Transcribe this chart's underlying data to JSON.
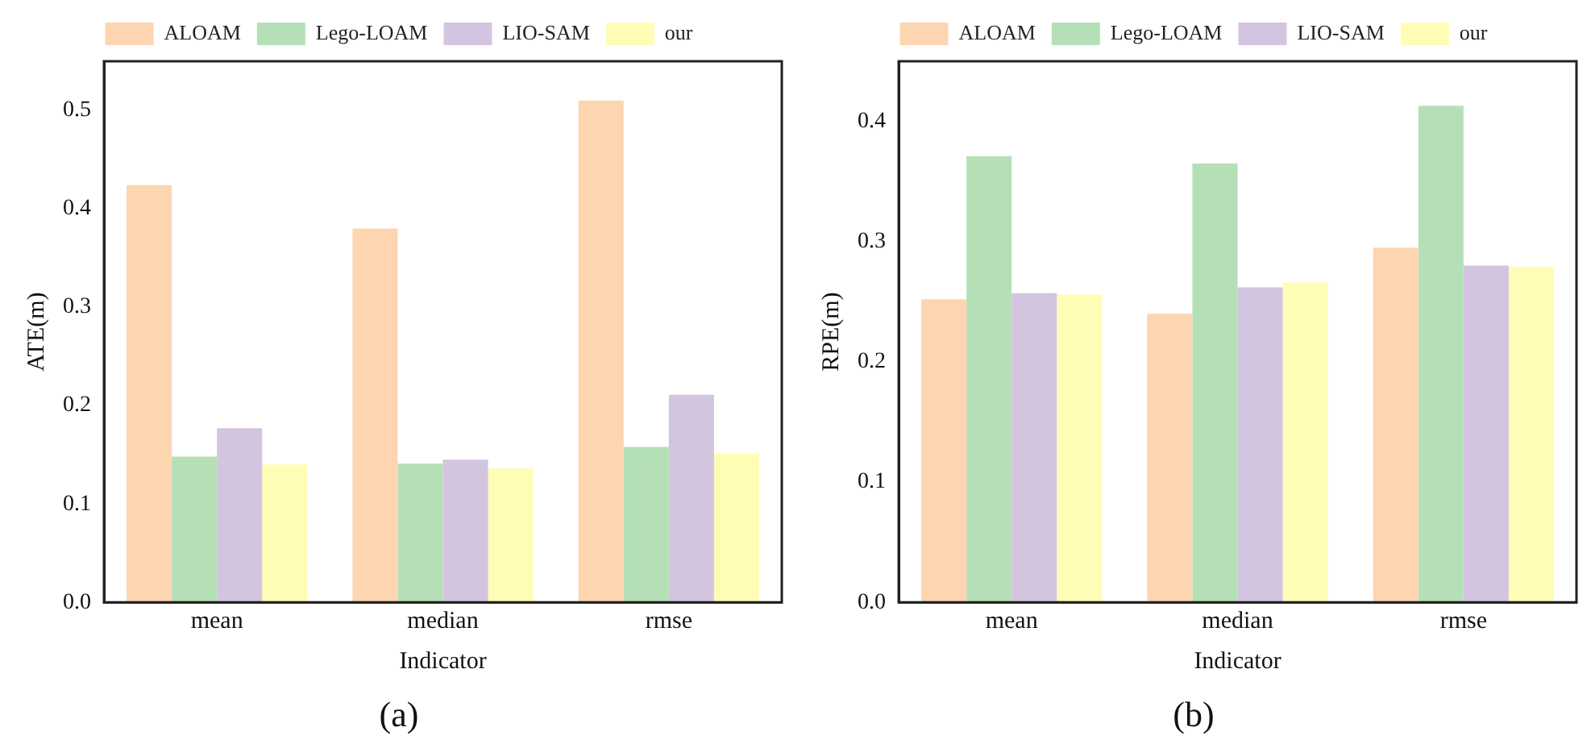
{
  "chart_data": [
    {
      "type": "bar",
      "title": "(a)",
      "xlabel": "Indicator",
      "ylabel": "ATE(m)",
      "categories": [
        "mean",
        "median",
        "rmse"
      ],
      "series": [
        {
          "name": "ALOAM",
          "color": "#fdd5b0",
          "values": [
            0.424,
            0.38,
            0.51
          ]
        },
        {
          "name": "Lego-LOAM",
          "color": "#b5e0b7",
          "values": [
            0.148,
            0.141,
            0.158
          ]
        },
        {
          "name": "LIO-SAM",
          "color": "#d3c4e0",
          "values": [
            0.177,
            0.145,
            0.211
          ]
        },
        {
          "name": "our",
          "color": "#fffdb5",
          "values": [
            0.14,
            0.136,
            0.151
          ]
        }
      ],
      "ylim": [
        0,
        0.55
      ],
      "yticks": [
        {
          "value": 0,
          "label": "0.0"
        },
        {
          "value": 0.1,
          "label": "0.1"
        },
        {
          "value": 0.2,
          "label": "0.2"
        },
        {
          "value": 0.3,
          "label": "0.3"
        },
        {
          "value": 0.4,
          "label": "0.4"
        },
        {
          "value": 0.5,
          "label": "0.5"
        }
      ],
      "grid": false,
      "legend": "top"
    },
    {
      "type": "bar",
      "title": "(b)",
      "xlabel": "Indicator",
      "ylabel": "RPE(m)",
      "categories": [
        "mean",
        "median",
        "rmse"
      ],
      "series": [
        {
          "name": "ALOAM",
          "color": "#fdd5b0",
          "values": [
            0.252,
            0.24,
            0.295
          ]
        },
        {
          "name": "Lego-LOAM",
          "color": "#b5e0b7",
          "values": [
            0.371,
            0.365,
            0.413
          ]
        },
        {
          "name": "LIO-SAM",
          "color": "#d3c4e0",
          "values": [
            0.257,
            0.262,
            0.28
          ]
        },
        {
          "name": "our",
          "color": "#fffdb5",
          "values": [
            0.256,
            0.266,
            0.279
          ]
        }
      ],
      "ylim": [
        0,
        0.45
      ],
      "yticks": [
        {
          "value": 0,
          "label": "0.0"
        },
        {
          "value": 0.1,
          "label": "0.1"
        },
        {
          "value": 0.2,
          "label": "0.2"
        },
        {
          "value": 0.3,
          "label": "0.3"
        },
        {
          "value": 0.4,
          "label": "0.4"
        }
      ],
      "grid": false,
      "legend": "top"
    }
  ]
}
